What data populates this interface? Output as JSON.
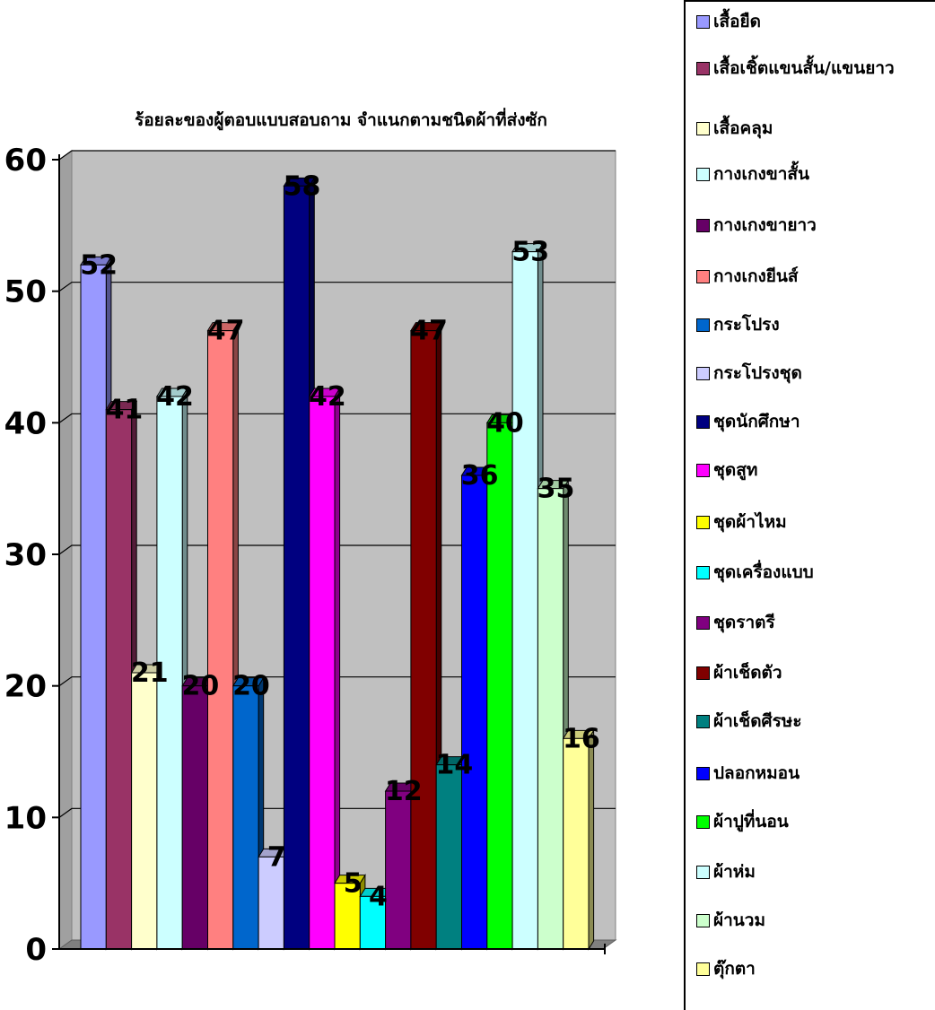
{
  "chart_data": {
    "type": "bar",
    "title": "ร้อยละของผู้ตอบแบบสอบถาม จำแนกตามชนิดผ้าที่ส่งซัก",
    "xlabel": "",
    "ylabel": "",
    "ylim": [
      0,
      60
    ],
    "yticks": [
      "0",
      "10",
      "20",
      "30",
      "40",
      "50",
      "60"
    ],
    "grid": true,
    "legend_position": "right",
    "series": [
      {
        "name": "เสื้อยืด",
        "value": 52,
        "color": "#9999ff"
      },
      {
        "name": "เสื้อเชิ้ตแขนสั้น/แขนยาว",
        "value": 41,
        "color": "#993366"
      },
      {
        "name": "เสื้อคลุม",
        "value": 21,
        "color": "#ffffcc"
      },
      {
        "name": "กางเกงขาสั้น",
        "value": 42,
        "color": "#ccffff"
      },
      {
        "name": "กางเกงขายาว",
        "value": 20,
        "color": "#660066"
      },
      {
        "name": "กางเกงยีนส์",
        "value": 47,
        "color": "#ff8080"
      },
      {
        "name": "กระโปรง",
        "value": 20,
        "color": "#0066cc"
      },
      {
        "name": "กระโปรงชุด",
        "value": 7,
        "color": "#ccccff"
      },
      {
        "name": "ชุดนักศึกษา",
        "value": 58,
        "color": "#000080"
      },
      {
        "name": "ชุดสูท",
        "value": 42,
        "color": "#ff00ff"
      },
      {
        "name": "ชุดผ้าไหม",
        "value": 5,
        "color": "#ffff00"
      },
      {
        "name": "ชุดเครื่องแบบ",
        "value": 4,
        "color": "#00ffff"
      },
      {
        "name": "ชุดราตรี",
        "value": 12,
        "color": "#800080"
      },
      {
        "name": "ผ้าเช็ดตัว",
        "value": 47,
        "color": "#800000"
      },
      {
        "name": "ผ้าเช็ดศีรษะ",
        "value": 14,
        "color": "#008080"
      },
      {
        "name": "ปลอกหมอน",
        "value": 36,
        "color": "#0000ff"
      },
      {
        "name": "ผ้าปูที่นอน",
        "value": 40,
        "color": "#00ff00"
      },
      {
        "name": "ผ้าห่ม",
        "value": 53,
        "color": "#ccffff"
      },
      {
        "name": "ผ้านวม",
        "value": 35,
        "color": "#ccffcc"
      },
      {
        "name": "ตุ๊กตา",
        "value": 16,
        "color": "#ffff99"
      }
    ]
  }
}
